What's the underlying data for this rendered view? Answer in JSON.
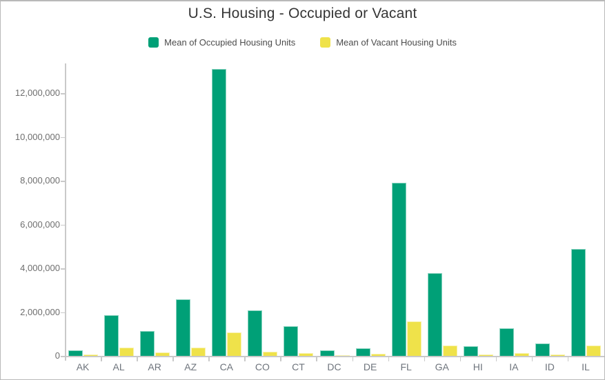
{
  "frame": {
    "background": "#ffffff",
    "border_color": "#b9b9b9"
  },
  "chart_data": {
    "type": "bar",
    "title": "U.S. Housing - Occupied or Vacant",
    "xlabel": "",
    "ylabel": "",
    "categories": [
      "AK",
      "AL",
      "AR",
      "AZ",
      "CA",
      "CO",
      "CT",
      "DC",
      "DE",
      "FL",
      "GA",
      "HI",
      "IA",
      "ID",
      "IL"
    ],
    "series": [
      {
        "name": "Mean of Occupied Housing Units",
        "color": "#00a077",
        "values": [
          250000,
          1860000,
          1140000,
          2590000,
          13100000,
          2080000,
          1350000,
          250000,
          350000,
          7920000,
          3790000,
          430000,
          1250000,
          570000,
          4870000
        ]
      },
      {
        "name": "Mean of Vacant Housing Units",
        "color": "#efe24a",
        "values": [
          60000,
          380000,
          170000,
          380000,
          1070000,
          190000,
          130000,
          40000,
          90000,
          1580000,
          460000,
          70000,
          130000,
          80000,
          470000
        ]
      }
    ],
    "ylim": [
      0,
      13200000
    ],
    "yticks": [
      0,
      2000000,
      4000000,
      6000000,
      8000000,
      10000000,
      12000000
    ],
    "ytick_labels": [
      "0",
      "2,000,000",
      "4,000,000",
      "6,000,000",
      "8,000,000",
      "10,000,000",
      "12,000,000"
    ],
    "grid": false,
    "legend_position": "top",
    "axis_color": "#c9c9c9"
  }
}
